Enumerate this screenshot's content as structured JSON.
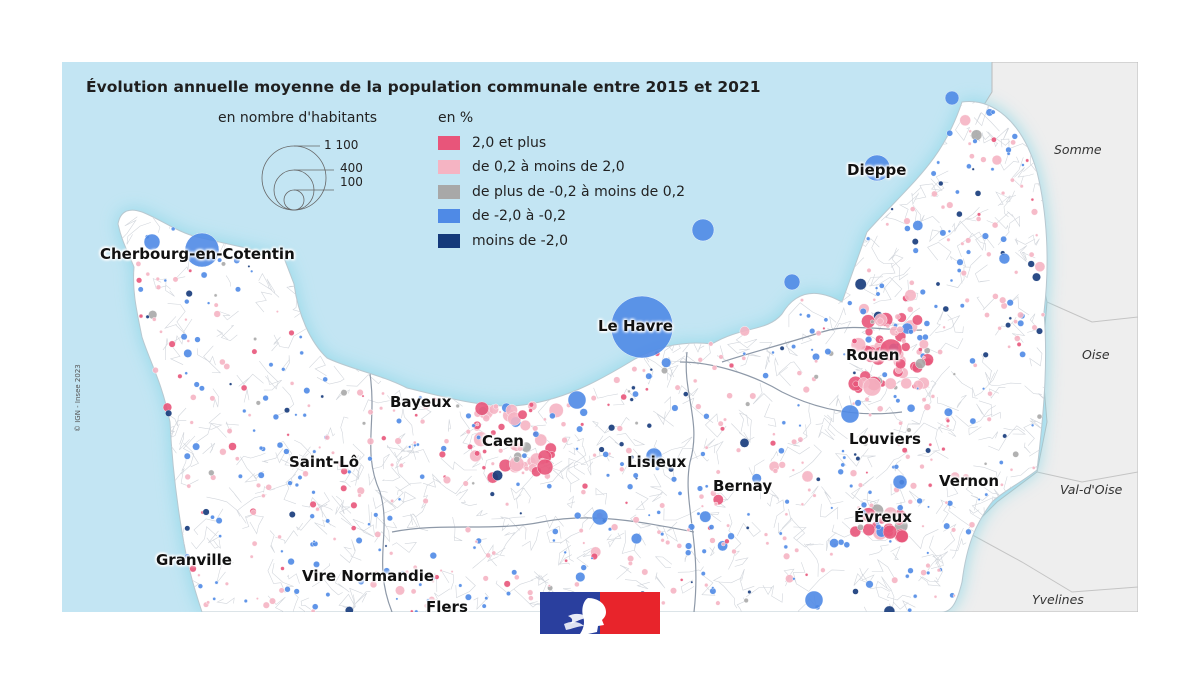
{
  "title": "Évolution annuelle moyenne de la population communale entre 2015 et 2021",
  "size_legend": {
    "title": "en nombre d'habitants",
    "values": [
      "1 100",
      "400",
      "100"
    ]
  },
  "color_legend": {
    "title": "en %",
    "items": [
      {
        "label": "2,0 et plus",
        "color": "#e8557a"
      },
      {
        "label": "de 0,2 à moins de 2,0",
        "color": "#f5b4c3"
      },
      {
        "label": "de plus de -0,2 à moins de 0,2",
        "color": "#a8a8a8"
      },
      {
        "label": "de -2,0 à -0,2",
        "color": "#4f8ae6"
      },
      {
        "label": "moins de -2,0",
        "color": "#14397a"
      }
    ]
  },
  "cities": [
    "Cherbourg-en-Cotentin",
    "Le Havre",
    "Dieppe",
    "Rouen",
    "Bayeux",
    "Caen",
    "Lisieux",
    "Saint-Lô",
    "Louviers",
    "Vernon",
    "Bernay",
    "Évreux",
    "Granville",
    "Vire Normandie",
    "Flers"
  ],
  "regions": [
    "Somme",
    "Oise",
    "Val-d'Oise",
    "Yvelines"
  ],
  "copyright": "© IGN - Insee 2023",
  "colors": {
    "sea": "#c3e5f3",
    "land": "#ffffff",
    "outside": "#eeeeee",
    "flag_blue": "#2a3f9e",
    "flag_red": "#e8242b"
  },
  "logo": "marianne-logo"
}
